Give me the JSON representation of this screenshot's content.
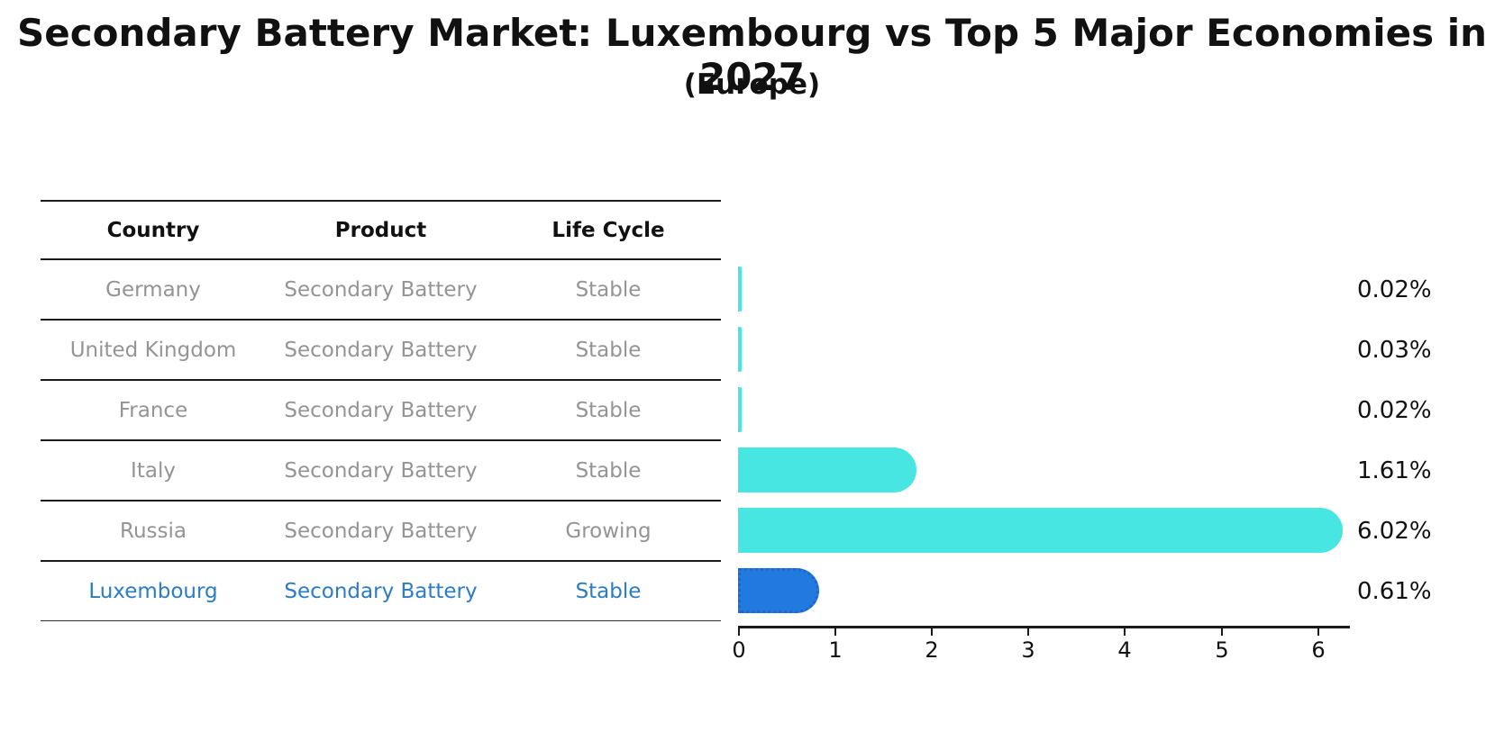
{
  "title": "Secondary Battery Market: Luxembourg vs Top 5 Major Economies in 2027",
  "subtitle": "(Europe)",
  "table": {
    "headers": {
      "country": "Country",
      "product": "Product",
      "life_cycle": "Life Cycle"
    },
    "rows": [
      {
        "country": "Germany",
        "product": "Secondary Battery",
        "life_cycle": "Stable",
        "highlighted": false
      },
      {
        "country": "United Kingdom",
        "product": "Secondary Battery",
        "life_cycle": "Stable",
        "highlighted": false
      },
      {
        "country": "France",
        "product": "Secondary Battery",
        "life_cycle": "Stable",
        "highlighted": false
      },
      {
        "country": "Italy",
        "product": "Secondary Battery",
        "life_cycle": "Stable",
        "highlighted": false
      },
      {
        "country": "Russia",
        "product": "Secondary Battery",
        "life_cycle": "Growing",
        "highlighted": false
      },
      {
        "country": "Luxembourg",
        "product": "Secondary Battery",
        "life_cycle": "Stable",
        "highlighted": true
      }
    ]
  },
  "chart_data": {
    "type": "bar",
    "orientation": "horizontal",
    "title": "Secondary Battery Market: Luxembourg vs Top 5 Major Economies in 2027",
    "subtitle": "(Europe)",
    "categories": [
      "Germany",
      "United Kingdom",
      "France",
      "Italy",
      "Russia",
      "Luxembourg"
    ],
    "values": [
      0.02,
      0.03,
      0.02,
      1.61,
      6.02,
      0.61
    ],
    "value_labels": [
      "0.02%",
      "0.03%",
      "0.02%",
      "1.61%",
      "6.02%",
      "0.61%"
    ],
    "x_ticks": [
      "0",
      "1",
      "2",
      "3",
      "4",
      "5",
      "6"
    ],
    "xlim": [
      0,
      6.32
    ],
    "grid": false,
    "legend": false,
    "bar_color": "#47e6e3",
    "highlight_bar_color": "#2279e0",
    "highlight_index": 5
  },
  "colors": {
    "text_primary": "#111111",
    "text_muted": "#949494",
    "highlight_text": "#2b7cc4",
    "bar_default": "#47e6e3",
    "bar_highlight": "#2279e0"
  }
}
